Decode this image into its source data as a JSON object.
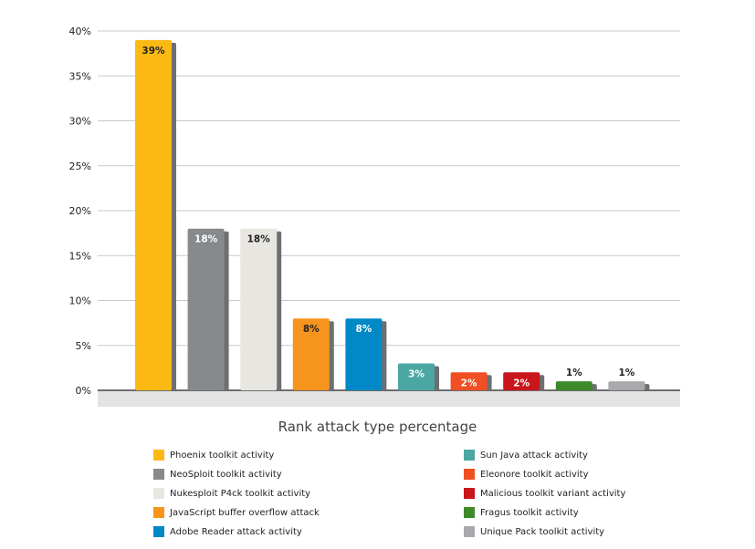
{
  "chart_data": {
    "type": "bar",
    "title": "Rank attack type percentage",
    "xlabel": "",
    "ylabel": "",
    "ylim": [
      0,
      40
    ],
    "y_ticks": [
      "0%",
      "5%",
      "10%",
      "15%",
      "20%",
      "25%",
      "30%",
      "35%",
      "40%"
    ],
    "grid": true,
    "legend_placement": "bottom",
    "categories": [
      "Phoenix toolkit activity",
      "NeoSploit toolkit activity",
      "Nukesploit P4ck toolkit activity",
      "JavaScript buffer overflow attack",
      "Adobe Reader attack activity",
      "Sun Java attack activity",
      "Eleonore toolkit activity",
      "Malicious toolkit variant activity",
      "Fragus toolkit activity",
      "Unique Pack toolkit activity"
    ],
    "values": [
      39,
      18,
      18,
      8,
      8,
      3,
      2,
      2,
      1,
      1
    ],
    "data_labels": [
      "39%",
      "18%",
      "18%",
      "8%",
      "8%",
      "3%",
      "2%",
      "2%",
      "1%",
      "1%"
    ],
    "colors": [
      "#FDB913",
      "#868A8D",
      "#E8E6E1",
      "#F7941D",
      "#0088C7",
      "#4BA7A4",
      "#F04E23",
      "#C8161D",
      "#3E8A2B",
      "#A7A9AC"
    ]
  }
}
